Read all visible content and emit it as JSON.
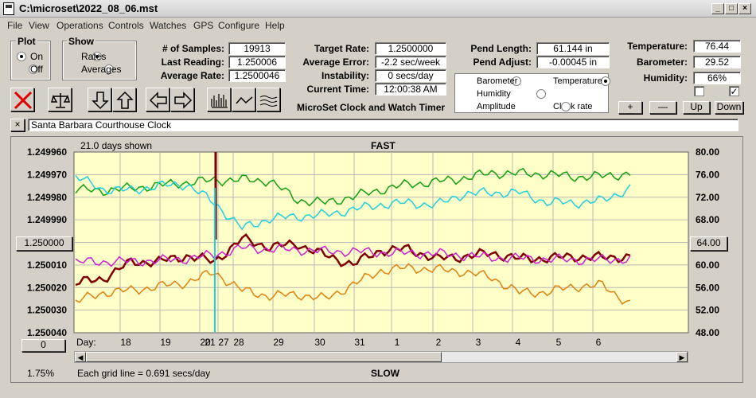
{
  "window": {
    "title": "C:\\microset\\2022_08_06.mst"
  },
  "menu": [
    "File",
    "View",
    "Operations",
    "Controls",
    "Watches",
    "GPS",
    "Configure",
    "Help"
  ],
  "plot": {
    "title": "Plot",
    "on": "On",
    "off": "Off",
    "selected": "On"
  },
  "show": {
    "title": "Show",
    "rates": "Rates",
    "averages": "Averages",
    "selected": "Rates"
  },
  "stats": {
    "samples_label": "# of Samples:",
    "samples": "19913",
    "last_label": "Last Reading:",
    "last": "1.250006",
    "avg_label": "Average Rate:",
    "avg": "1.2500046"
  },
  "rates": {
    "target_label": "Target Rate:",
    "target": "1.2500000",
    "error_label": "Average Error:",
    "error": "-2.2 sec/week",
    "instab_label": "Instability:",
    "instab": "0 secs/day",
    "time_label": "Current Time:",
    "time": "12:00:38 AM"
  },
  "pend": {
    "length_label": "Pend Length:",
    "length": "61.144 in",
    "adjust_label": "Pend Adjust:",
    "adjust": "-0.00045 in"
  },
  "env": {
    "temp_label": "Temperature:",
    "temp": "76.44",
    "baro_label": "Barometer:",
    "baro": "29.52",
    "hum_label": "Humidity:",
    "hum": "66%"
  },
  "sensors": [
    {
      "label": "Barometer",
      "color": "#e08010",
      "selected": false
    },
    {
      "label": "Temperature",
      "color": "#10a010",
      "selected": true
    },
    {
      "label": "Humidity",
      "color": "#d020d0",
      "selected": false
    },
    {
      "label": "Clock rate",
      "color": "#800000",
      "selected": false
    },
    {
      "label": "Amplitude",
      "color": "#20d0e0",
      "selected": false
    }
  ],
  "app_caption": "MicroSet Clock and Watch Timer",
  "scale_buttons": {
    "plus": "+",
    "minus": "—",
    "up": "Up",
    "down": "Down"
  },
  "clock_name": "Santa Barbara Courthouse Clock",
  "chart_header": {
    "days_shown": "21.0 days shown",
    "fast": "FAST",
    "slow": "SLOW",
    "grid_note": "Each grid line = 0.691 secs/day",
    "percent": "1.75%",
    "day_label": "Day:"
  },
  "left_button": "1.250000",
  "right_button": "64.00",
  "zero_button": "0",
  "colors": {
    "plot_bg": "#ffffc8",
    "grid": "#b8b8b8"
  },
  "chart_data": {
    "type": "line",
    "xlabel": "Day:",
    "x_ticks": [
      "18",
      "19",
      "20",
      "21",
      "27",
      "28",
      "29",
      "30",
      "31",
      "1",
      "2",
      "3",
      "4",
      "5",
      "6"
    ],
    "y_left_ticks": [
      "1.249960",
      "1.249970",
      "1.249980",
      "1.249990",
      "1.250000",
      "1.250010",
      "1.250020",
      "1.250030",
      "1.250040"
    ],
    "y_left_range": [
      1.24996,
      1.25004
    ],
    "y_right_ticks": [
      "80.00",
      "76.00",
      "72.00",
      "68.00",
      "64.00",
      "60.00",
      "56.00",
      "52.00",
      "48.00"
    ],
    "y_right_range": [
      48,
      80
    ],
    "series": [
      {
        "name": "Temperature",
        "color": "#10a010",
        "x": [
          0,
          5,
          10,
          15,
          20,
          25,
          30,
          35,
          40,
          45,
          50,
          55,
          60,
          65,
          70,
          75,
          80,
          85,
          90,
          95,
          100
        ],
        "values": [
          73.3,
          73.2,
          73.6,
          74.1,
          74.6,
          75.0,
          75.1,
          74.9,
          71.5,
          71.0,
          72.1,
          73.3,
          74.3,
          74.7,
          75.4,
          76.3,
          76.2,
          76.1,
          75.6,
          75.7,
          76.2
        ]
      },
      {
        "name": "Amplitude",
        "color": "#20d0e0",
        "x": [
          0,
          5,
          10,
          15,
          20,
          25,
          30,
          35,
          40,
          45,
          50,
          55,
          60,
          65,
          70,
          75,
          80,
          85,
          90,
          95,
          100
        ],
        "values": [
          75.6,
          73.4,
          73.2,
          74.0,
          74.3,
          71.0,
          66.5,
          68.2,
          68.6,
          68.9,
          69.8,
          70.7,
          71.0,
          70.6,
          72.6,
          72.8,
          72.8,
          71.1,
          71.0,
          71.4,
          73.6
        ]
      },
      {
        "name": "Clock rate",
        "color": "#800000",
        "x": [
          0,
          5,
          10,
          15,
          20,
          25,
          30,
          35,
          40,
          45,
          50,
          55,
          60,
          65,
          70,
          75,
          80,
          85,
          90,
          95,
          100
        ],
        "values": [
          56.8,
          57.6,
          60.5,
          60.6,
          61.6,
          60.6,
          64.6,
          63.2,
          63.7,
          61.7,
          60.1,
          62.6,
          62.8,
          61.1,
          61.5,
          62.1,
          61.1,
          61.2,
          61.5,
          61.3,
          61.5
        ]
      },
      {
        "name": "Humidity",
        "color": "#d020d0",
        "x": [
          0,
          5,
          10,
          15,
          20,
          25,
          30,
          35,
          40,
          45,
          50,
          55,
          60,
          65,
          70,
          75,
          80,
          85,
          90,
          95,
          100
        ],
        "values": [
          60.5,
          60.6,
          60.6,
          60.8,
          61.1,
          61.8,
          63.0,
          62.8,
          62.7,
          62.4,
          62.4,
          62.2,
          62.1,
          62.0,
          61.7,
          61.3,
          61.2,
          61.0,
          60.9,
          60.9,
          61.1
        ]
      },
      {
        "name": "Barometer",
        "color": "#e08010",
        "x": [
          0,
          5,
          10,
          15,
          20,
          25,
          30,
          35,
          40,
          45,
          50,
          55,
          60,
          65,
          70,
          75,
          80,
          85,
          90,
          95,
          100
        ],
        "values": [
          53.5,
          55.1,
          55.5,
          56.2,
          56.9,
          58.7,
          55.5,
          54.5,
          54.8,
          54.0,
          56.5,
          59.0,
          59.5,
          59.2,
          58.8,
          57.8,
          55.1,
          55.2,
          56.2,
          56.4,
          53.1
        ]
      }
    ]
  }
}
